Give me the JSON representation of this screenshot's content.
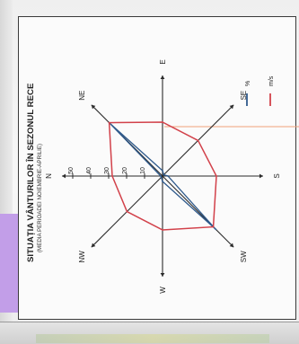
{
  "chart_data": {
    "type": "radar",
    "title": "SITUAȚIA VÂNTURILOR ÎN SEZONUL RECE",
    "subtitle": "(MEDIA PERIOADEI NOIEMBRIE-APRILIE)",
    "directions": [
      "N",
      "NE",
      "E",
      "SE",
      "S",
      "SW",
      "W",
      "NW"
    ],
    "ticks": [
      0,
      10,
      20,
      30,
      40,
      50
    ],
    "r_range": [
      0,
      50
    ],
    "series": [
      {
        "name": "%",
        "color": "#2f5a8c",
        "values": [
          1,
          42,
          3,
          1,
          3,
          42,
          3,
          1
        ]
      },
      {
        "name": "m/s",
        "color": "#d2414a",
        "values": [
          28,
          42,
          30,
          28,
          30,
          40,
          30,
          28
        ]
      }
    ],
    "legend_position": "right"
  },
  "colors": {
    "red": "#d2414a",
    "blue": "#2f5a8c",
    "orange_line": "#f2a07a"
  }
}
